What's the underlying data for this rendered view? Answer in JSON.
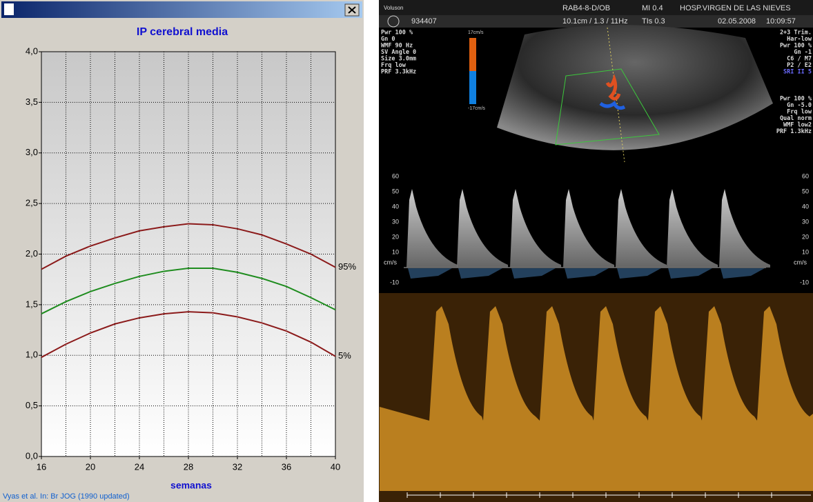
{
  "chart_data": {
    "type": "line",
    "title": "IP cerebral media",
    "xlabel": "semanas",
    "source": "Vyas et al. In: Br JOG (1990 updated)",
    "x": [
      16,
      18,
      20,
      22,
      24,
      26,
      28,
      30,
      32,
      34,
      36,
      38,
      40
    ],
    "series": [
      {
        "name": "95%",
        "color": "#8b1a1a",
        "values": [
          1.85,
          1.98,
          2.08,
          2.16,
          2.23,
          2.27,
          2.3,
          2.29,
          2.25,
          2.19,
          2.1,
          2.0,
          1.87
        ]
      },
      {
        "color": "#1e8c1e",
        "values": [
          1.41,
          1.53,
          1.63,
          1.71,
          1.78,
          1.83,
          1.86,
          1.86,
          1.82,
          1.76,
          1.68,
          1.57,
          1.45
        ]
      },
      {
        "name": "5%",
        "color": "#8b1a1a",
        "values": [
          0.98,
          1.11,
          1.22,
          1.31,
          1.37,
          1.41,
          1.43,
          1.42,
          1.38,
          1.32,
          1.24,
          1.13,
          0.99
        ]
      }
    ],
    "xlim": [
      16,
      40
    ],
    "xticks": [
      16,
      20,
      24,
      28,
      32,
      36,
      40
    ],
    "xminorticks": [
      18,
      22,
      26,
      30,
      34,
      38
    ],
    "ylim": [
      0,
      4
    ],
    "yticks": [
      {
        "value": 0,
        "label": "0,0"
      },
      {
        "value": 0.5,
        "label": "0,5"
      },
      {
        "value": 1,
        "label": "1,0"
      },
      {
        "value": 1.5,
        "label": "1,5"
      },
      {
        "value": 2,
        "label": "2,0"
      },
      {
        "value": 2.5,
        "label": "2,5"
      },
      {
        "value": 3,
        "label": "3,0"
      },
      {
        "value": 3.5,
        "label": "3,5"
      },
      {
        "value": 4,
        "label": "4,0"
      }
    ],
    "grid": true
  },
  "ultrasound": {
    "header": [
      "Voluson",
      "RAB4-8-D/OB",
      "MI 0.4",
      "HOSP.VIRGEN DE LAS NIEVES"
    ],
    "subheader": [
      "934407",
      "10.1cm / 1.3 / 11Hz",
      "TIs 0.3",
      "02.05.2008",
      "10:09:57"
    ],
    "left_params": [
      "Pwr 100 %",
      "Gn  0",
      "WMF 90 Hz",
      "SV Angle  0",
      "Size  3.0mm",
      "Frq low",
      "PRF 3.3kHz"
    ],
    "right_params": [
      "2+3 Trim.",
      "Har-low",
      "Pwr 100 %",
      "Gn -1",
      "C6 / M7",
      "P2 / E2",
      "SRI II 5"
    ],
    "right_params_2": [
      "Pwr 100 %",
      "Gn -5.0",
      "Frq low",
      "Qual norm",
      "WMF low2",
      "PRF 1.3kHz"
    ],
    "color_scale": [
      "17cm/s",
      "-17cm/s"
    ],
    "velocity_scale": [
      60,
      50,
      40,
      30,
      20,
      10,
      -10
    ],
    "unit": "cm/s"
  }
}
